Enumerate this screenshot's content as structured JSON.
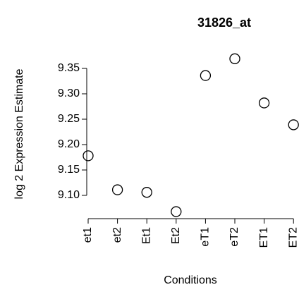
{
  "chart_data": {
    "type": "scatter",
    "title": "31826_at",
    "xlabel": "Conditions",
    "ylabel": "log 2 Expression Estimate",
    "categories": [
      "et1",
      "et2",
      "Et1",
      "Et2",
      "eT1",
      "eT2",
      "ET1",
      "ET2"
    ],
    "values": [
      9.178,
      9.111,
      9.106,
      9.068,
      9.336,
      9.369,
      9.282,
      9.239
    ],
    "color": "#000000",
    "ylim": [
      9.06,
      9.375
    ],
    "yticks": [
      {
        "value": 9.1,
        "label": "9.10"
      },
      9.15,
      {
        "value": 9.2,
        "label": "9.20"
      },
      9.25,
      {
        "value": 9.3,
        "label": "9.30"
      },
      9.35
    ]
  }
}
